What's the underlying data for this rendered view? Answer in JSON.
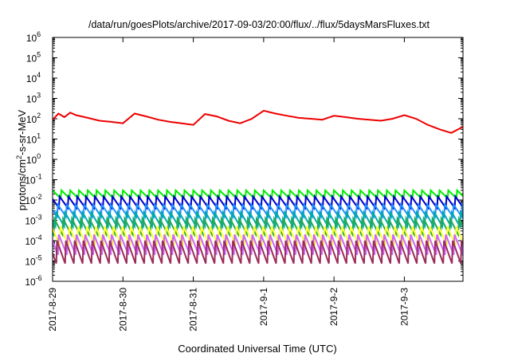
{
  "chart_data": {
    "type": "line",
    "title": "/data/run/goesPlots/archive/2017-09-03/20:00/flux/../flux/5daysMarsFluxes.txt",
    "xlabel": "Coordinated Universal Time (UTC)",
    "ylabel": {
      "prefix": "protons/cm",
      "sup": "2",
      "suffix": "-s-sr-MeV"
    },
    "yscale": "log",
    "ylim": [
      1e-06,
      1000000.0
    ],
    "y_ticks": [
      {
        "base": "10",
        "exp": "-6"
      },
      {
        "base": "10",
        "exp": "-5"
      },
      {
        "base": "10",
        "exp": "-4"
      },
      {
        "base": "10",
        "exp": "-3"
      },
      {
        "base": "10",
        "exp": "-2"
      },
      {
        "base": "10",
        "exp": "-1"
      },
      {
        "base": "10",
        "exp": "0"
      },
      {
        "base": "10",
        "exp": "1"
      },
      {
        "base": "10",
        "exp": "2"
      },
      {
        "base": "10",
        "exp": "3"
      },
      {
        "base": "10",
        "exp": "4"
      },
      {
        "base": "10",
        "exp": "5"
      },
      {
        "base": "10",
        "exp": "6"
      }
    ],
    "xlim": [
      "2017-08-29T00:00",
      "2017-09-03T20:00"
    ],
    "x_ticks": [
      "2017-8-29",
      "2017-8-30",
      "2017-8-31",
      "2017-9-1",
      "2017-9-2",
      "2017-9-3"
    ],
    "grid": false,
    "legend": "none",
    "series": [
      {
        "color": "#ee0000",
        "x": [
          "2017-08-29T00:00",
          "2017-08-29T02:00",
          "2017-08-29T04:00",
          "2017-08-29T06:00",
          "2017-08-29T08:00",
          "2017-08-29T12:00",
          "2017-08-29T16:00",
          "2017-08-29T20:00",
          "2017-08-30T00:00",
          "2017-08-30T04:00",
          "2017-08-30T08:00",
          "2017-08-30T12:00",
          "2017-08-30T16:00",
          "2017-08-30T20:00",
          "2017-08-31T00:00",
          "2017-08-31T04:00",
          "2017-08-31T08:00",
          "2017-08-31T12:00",
          "2017-08-31T16:00",
          "2017-08-31T20:00",
          "2017-09-01T00:00",
          "2017-09-01T04:00",
          "2017-09-01T08:00",
          "2017-09-01T12:00",
          "2017-09-01T16:00",
          "2017-09-01T20:00",
          "2017-09-02T00:00",
          "2017-09-02T04:00",
          "2017-09-02T08:00",
          "2017-09-02T12:00",
          "2017-09-02T16:00",
          "2017-09-02T20:00",
          "2017-09-03T00:00",
          "2017-09-03T04:00",
          "2017-09-03T08:00",
          "2017-09-03T12:00",
          "2017-09-03T16:00",
          "2017-09-03T20:00"
        ],
        "y": [
          90,
          180,
          120,
          200,
          150,
          110,
          80,
          70,
          60,
          180,
          130,
          90,
          70,
          60,
          50,
          170,
          130,
          80,
          60,
          100,
          250,
          180,
          140,
          110,
          100,
          90,
          140,
          120,
          100,
          90,
          80,
          100,
          150,
          100,
          50,
          30,
          20,
          40
        ]
      },
      {
        "color": "#00ee00",
        "top": 0.03,
        "bottom": 0.012,
        "phase": 0.0
      },
      {
        "color": "#0000cc",
        "top": 0.015,
        "bottom": 0.004,
        "phase": 0.2
      },
      {
        "color": "#1e90ff",
        "top": 0.006,
        "bottom": 0.0015,
        "phase": 0.4
      },
      {
        "color": "#00aaaa",
        "top": 0.0025,
        "bottom": 0.0005,
        "phase": 0.6
      },
      {
        "color": "#22aa55",
        "top": 0.0012,
        "bottom": 0.0002,
        "phase": 0.8
      },
      {
        "color": "#ffff33",
        "top": 0.0005,
        "bottom": 6e-05,
        "phase": 0.1
      },
      {
        "color": "#cc66ff",
        "top": 0.0002,
        "bottom": 2e-05,
        "phase": 0.3
      },
      {
        "color": "#9b2d5a",
        "top": 0.0001,
        "bottom": 7.5e-06,
        "phase": 0.5
      }
    ]
  }
}
